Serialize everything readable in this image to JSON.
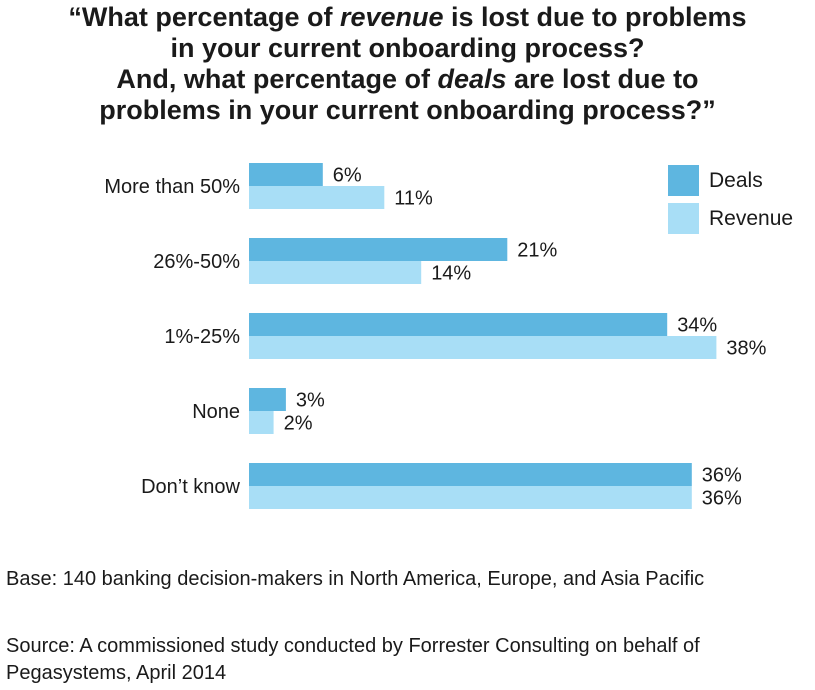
{
  "title": {
    "line1_a": "“What percentage of ",
    "line1_em": "revenue",
    "line1_b": " is lost due to problems",
    "line2": "in your current onboarding process?",
    "line3_a": "And, what percentage of ",
    "line3_em": "deals",
    "line3_b": " are lost due to",
    "line4": "problems in your current onboarding process?”"
  },
  "chart_data": {
    "type": "bar",
    "orientation": "horizontal",
    "categories": [
      "More than 50%",
      "26%-50%",
      "1%-25%",
      "None",
      "Don’t know"
    ],
    "series": [
      {
        "name": "Deals",
        "values": [
          6,
          21,
          34,
          3,
          36
        ],
        "color": "#5eb6e0"
      },
      {
        "name": "Revenue",
        "values": [
          11,
          14,
          38,
          2,
          36
        ],
        "color": "#a8def6"
      }
    ],
    "value_suffix": "%",
    "xlim": [
      0,
      40
    ],
    "legend_position": "top-right",
    "grid": false
  },
  "footnotes": {
    "base": "Base: 140 banking decision-makers in North America, Europe, and Asia Pacific",
    "source": "Source: A commissioned study conducted by Forrester Consulting on behalf of Pegasystems, April 2014"
  }
}
